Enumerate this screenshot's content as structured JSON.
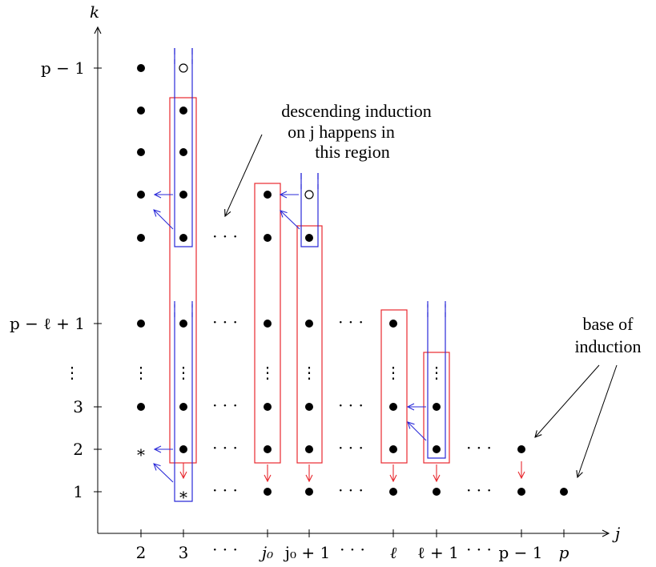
{
  "axes": {
    "x_label": "j",
    "y_label": "k",
    "x_ticks": [
      {
        "key": "c2",
        "label": "2"
      },
      {
        "key": "c3",
        "label": "3"
      },
      {
        "key": "cd1",
        "label": "· · ·"
      },
      {
        "key": "cj0",
        "label": "j₀"
      },
      {
        "key": "cj0p1",
        "label": "j₀ + 1"
      },
      {
        "key": "cd2",
        "label": "· · ·"
      },
      {
        "key": "cl",
        "label": "ℓ"
      },
      {
        "key": "clp1",
        "label": "ℓ + 1"
      },
      {
        "key": "cd3",
        "label": "· · ·"
      },
      {
        "key": "cpm1",
        "label": "p − 1"
      },
      {
        "key": "cp",
        "label": "p"
      }
    ],
    "y_ticks": [
      {
        "key": "r1",
        "label": "1"
      },
      {
        "key": "r2",
        "label": "2"
      },
      {
        "key": "r3",
        "label": "3"
      },
      {
        "key": "rvd",
        "label": "⋮"
      },
      {
        "key": "rplp1",
        "label": "p − ℓ + 1"
      },
      {
        "key": "rpm1",
        "label": "p − 1"
      }
    ]
  },
  "annotations": {
    "induction_region": [
      "descending induction",
      "on j happens in",
      "this region"
    ],
    "base": [
      "base of",
      "induction"
    ]
  },
  "symbols": {
    "star": "*",
    "hdots": "· · ·",
    "vdots": "⋮"
  },
  "colors": {
    "red_box": "#e8282e",
    "blue_box": "#2a2ad8",
    "axis": "#000000"
  }
}
